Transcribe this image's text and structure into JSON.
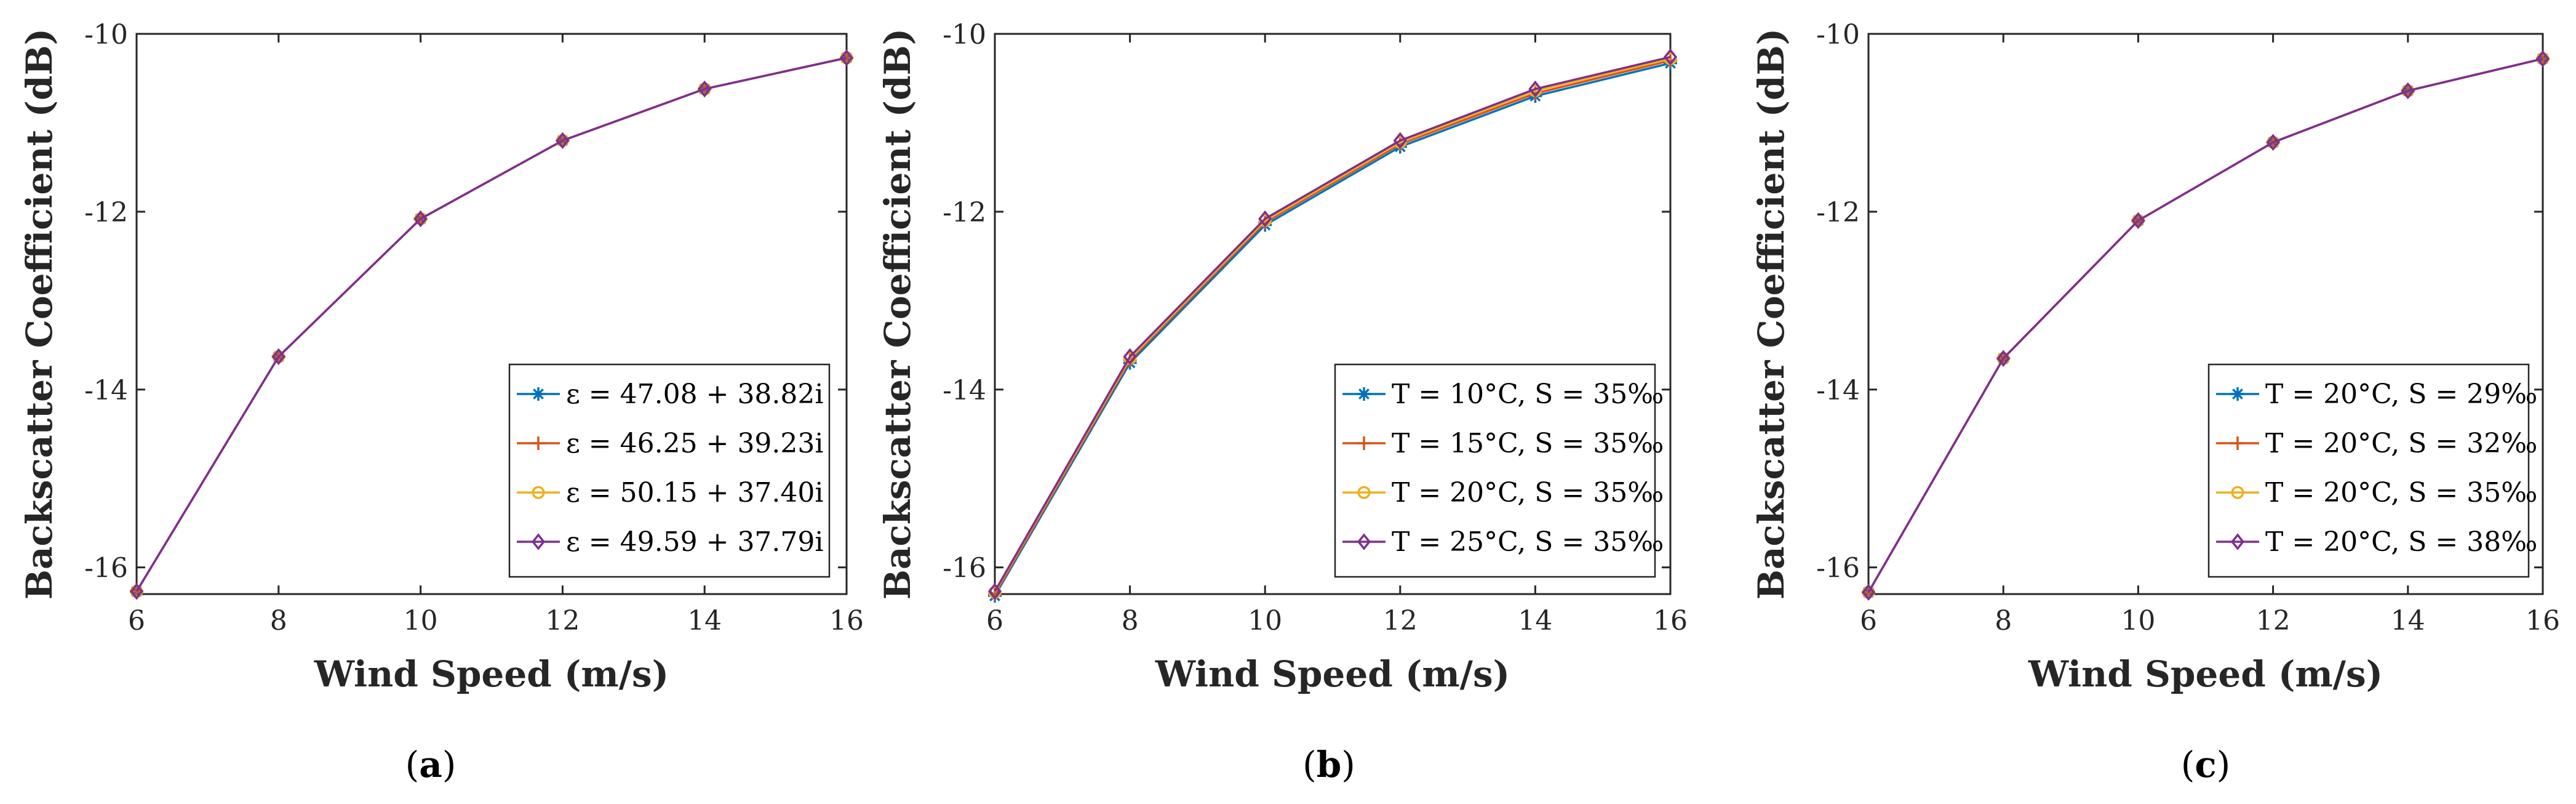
{
  "colors": {
    "series1": "#0072BD",
    "series2": "#D95319",
    "series3": "#EDB120",
    "series4": "#7E2F8E",
    "axis": "#262626",
    "legend_border": "#262626"
  },
  "chart_data": [
    {
      "type": "line",
      "caption_label": "a",
      "xlabel": "Wind Speed (m/s)",
      "ylabel": "Backscatter Coefficient (dB)",
      "xlim": [
        6,
        16
      ],
      "ylim": [
        -16.3,
        -10
      ],
      "xticks": [
        6,
        8,
        10,
        12,
        14,
        16
      ],
      "yticks": [
        -16,
        -14,
        -12,
        -10
      ],
      "legend_position": "bottom-right",
      "x": [
        6,
        8,
        10,
        12,
        14,
        16
      ],
      "series": [
        {
          "name": "ε = 47.08 + 38.82i",
          "marker": "asterisk",
          "values": [
            -16.27,
            -13.63,
            -12.08,
            -11.2,
            -10.62,
            -10.27
          ]
        },
        {
          "name": "ε = 46.25 + 39.23i",
          "marker": "plus",
          "values": [
            -16.27,
            -13.63,
            -12.08,
            -11.2,
            -10.62,
            -10.27
          ]
        },
        {
          "name": "ε = 50.15 + 37.40i",
          "marker": "circle",
          "values": [
            -16.27,
            -13.63,
            -12.08,
            -11.2,
            -10.62,
            -10.27
          ]
        },
        {
          "name": "ε = 49.59 + 37.79i",
          "marker": "diamond",
          "values": [
            -16.27,
            -13.63,
            -12.08,
            -11.2,
            -10.62,
            -10.27
          ]
        }
      ]
    },
    {
      "type": "line",
      "caption_label": "b",
      "xlabel": "Wind Speed (m/s)",
      "ylabel": "Backscatter Coefficient (dB)",
      "xlim": [
        6,
        16
      ],
      "ylim": [
        -16.3,
        -10
      ],
      "xticks": [
        6,
        8,
        10,
        12,
        14,
        16
      ],
      "yticks": [
        -16,
        -14,
        -12,
        -10
      ],
      "legend_position": "bottom-right",
      "x": [
        6,
        8,
        10,
        12,
        14,
        16
      ],
      "series": [
        {
          "name": "T = 10°C, S = 35‰",
          "marker": "asterisk",
          "values": [
            -16.32,
            -13.7,
            -12.15,
            -11.27,
            -10.7,
            -10.33
          ]
        },
        {
          "name": "T = 15°C, S = 35‰",
          "marker": "plus",
          "values": [
            -16.3,
            -13.67,
            -12.12,
            -11.24,
            -10.67,
            -10.3
          ]
        },
        {
          "name": "T = 20°C, S = 35‰",
          "marker": "circle",
          "values": [
            -16.28,
            -13.65,
            -12.1,
            -11.22,
            -10.64,
            -10.28
          ]
        },
        {
          "name": "T = 25°C, S = 35‰",
          "marker": "diamond",
          "values": [
            -16.27,
            -13.63,
            -12.08,
            -11.2,
            -10.62,
            -10.26
          ]
        }
      ]
    },
    {
      "type": "line",
      "caption_label": "c",
      "xlabel": "Wind Speed (m/s)",
      "ylabel": "Backscatter Coefficient (dB)",
      "xlim": [
        6,
        16
      ],
      "ylim": [
        -16.3,
        -10
      ],
      "xticks": [
        6,
        8,
        10,
        12,
        14,
        16
      ],
      "yticks": [
        -16,
        -14,
        -12,
        -10
      ],
      "legend_position": "bottom-right",
      "x": [
        6,
        8,
        10,
        12,
        14,
        16
      ],
      "series": [
        {
          "name": "T = 20°C, S = 29‰",
          "marker": "asterisk",
          "values": [
            -16.28,
            -13.65,
            -12.1,
            -11.22,
            -10.64,
            -10.28
          ]
        },
        {
          "name": "T = 20°C, S = 32‰",
          "marker": "plus",
          "values": [
            -16.28,
            -13.65,
            -12.1,
            -11.22,
            -10.64,
            -10.28
          ]
        },
        {
          "name": "T = 20°C, S = 35‰",
          "marker": "circle",
          "values": [
            -16.28,
            -13.65,
            -12.1,
            -11.22,
            -10.64,
            -10.28
          ]
        },
        {
          "name": "T = 20°C, S = 38‰",
          "marker": "diamond",
          "values": [
            -16.28,
            -13.65,
            -12.1,
            -11.22,
            -10.64,
            -10.28
          ]
        }
      ]
    }
  ]
}
